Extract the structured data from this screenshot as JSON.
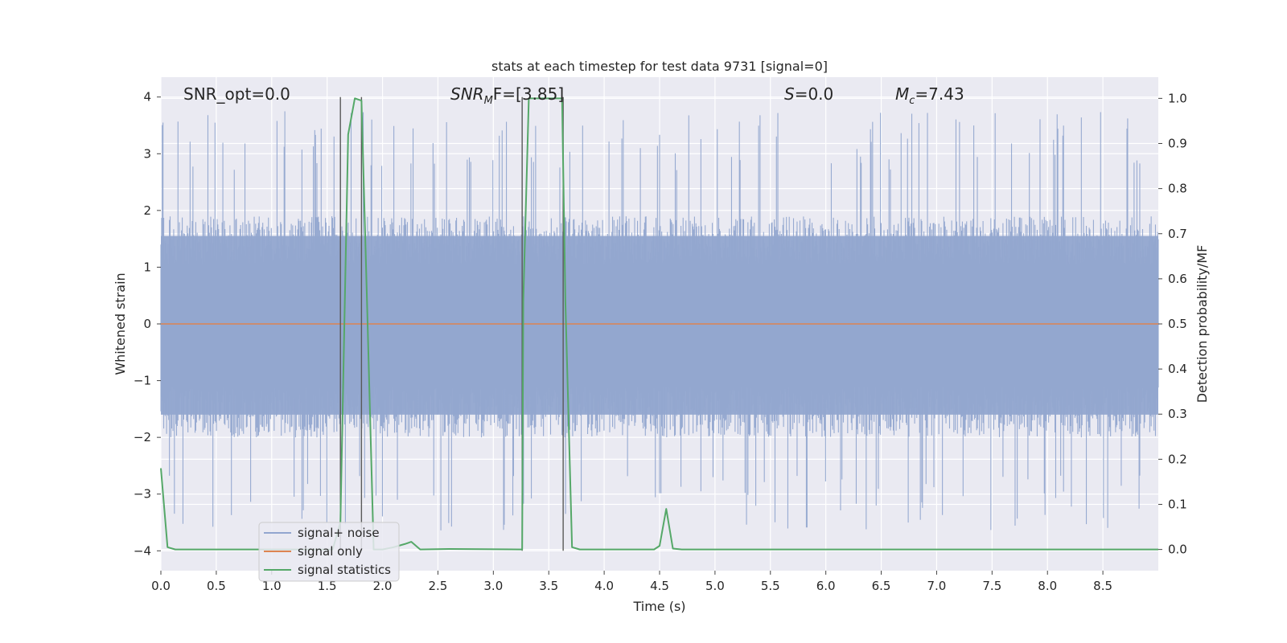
{
  "chart_data": {
    "type": "line",
    "title": "stats at each timestep for test data 9731 [signal=0]",
    "xlabel": "Time (s)",
    "ylabel_left": "Whitened strain",
    "ylabel_right": "Detection probability/MF",
    "xlim": [
      0.0,
      9.0
    ],
    "ylim_left": [
      -4.35,
      4.35
    ],
    "ylim_right": [
      -0.047,
      1.047
    ],
    "xticks": [
      "0.0",
      "0.5",
      "1.0",
      "1.5",
      "2.0",
      "2.5",
      "3.0",
      "3.5",
      "4.0",
      "4.5",
      "5.0",
      "5.5",
      "6.0",
      "6.5",
      "7.0",
      "7.5",
      "8.0",
      "8.5"
    ],
    "yticks_left": [
      "4",
      "3",
      "2",
      "1",
      "0",
      "−1",
      "−2",
      "−3",
      "−4"
    ],
    "yticks_right": [
      "1.0",
      "0.9",
      "0.8",
      "0.7",
      "0.6",
      "0.5",
      "0.4",
      "0.3",
      "0.2",
      "0.1",
      "0.0"
    ],
    "grid": true,
    "legend_placement": "lower-left",
    "annotations": {
      "snr_opt": "SNR_opt=0.0",
      "snr_mf_main": "SNR",
      "snr_mf_sub": "M",
      "snr_mf_rest": "F=[3.85]",
      "s_main": "S",
      "s_rest": "=0.0",
      "mc_main": "M",
      "mc_sub": "c",
      "mc_rest": "=7.43"
    },
    "series": [
      {
        "name": "signal+ noise",
        "color": "#92a6cf",
        "axis": "left",
        "kind": "noise",
        "envelope": {
          "upper_typical": 1.9,
          "lower_typical": -2.0,
          "max": 3.75,
          "min": -3.7
        }
      },
      {
        "name": "signal only",
        "color": "#dd8452",
        "axis": "left",
        "x": [
          0.0,
          9.0
        ],
        "y": [
          0.0,
          0.0
        ]
      },
      {
        "name": "signal statistics",
        "color": "#55a868",
        "axis": "right",
        "x": [
          0.0,
          0.06,
          0.13,
          1.55,
          1.62,
          1.69,
          1.75,
          1.81,
          1.86,
          1.92,
          2.0,
          2.1,
          2.2,
          2.26,
          2.34,
          2.6,
          3.26,
          3.27,
          3.32,
          3.62,
          3.65,
          3.71,
          3.78,
          4.45,
          4.5,
          4.56,
          4.62,
          4.7,
          9.0
        ],
        "y": [
          0.18,
          0.005,
          0.0,
          0.0,
          0.06,
          0.92,
          1.0,
          0.995,
          0.55,
          0.0,
          0.0,
          0.005,
          0.012,
          0.017,
          0.0,
          0.001,
          0.0,
          0.55,
          1.0,
          1.0,
          0.55,
          0.005,
          0.0,
          0.0,
          0.008,
          0.09,
          0.002,
          0.0,
          0.0
        ]
      }
    ],
    "vertical_markers": {
      "color": "#595959",
      "x": [
        1.62,
        1.81,
        3.26,
        3.63
      ],
      "y_range": [
        -4.0,
        4.0
      ]
    }
  }
}
